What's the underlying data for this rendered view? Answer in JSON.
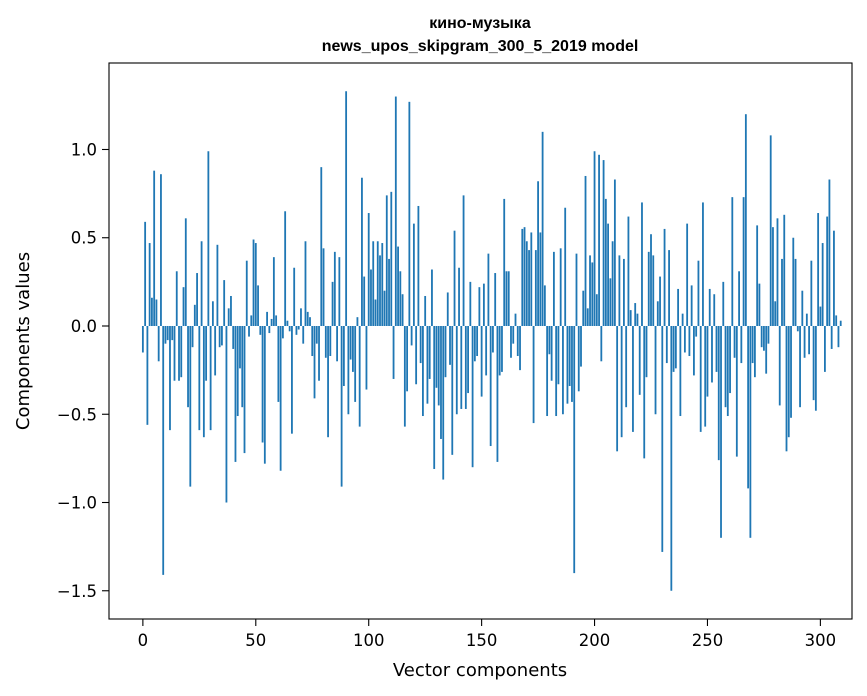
{
  "chart_data": {
    "type": "bar",
    "title": "кино-музыка",
    "subtitle": "news_upos_skipgram_300_5_2019 model",
    "xlabel": "Vector components",
    "ylabel": "Components values",
    "xlim": [
      -15,
      314
    ],
    "ylim": [
      -1.66,
      1.49
    ],
    "xticks": [
      0,
      50,
      100,
      150,
      200,
      250,
      300
    ],
    "yticks": [
      -1.5,
      -1.0,
      -0.5,
      0.0,
      0.5,
      1.0
    ],
    "ytick_labels": [
      "−1.5",
      "−1.0",
      "−0.5",
      "0.0",
      "0.5",
      "1.0"
    ],
    "xtick_labels": [
      "0",
      "50",
      "100",
      "150",
      "200",
      "250",
      "300"
    ],
    "bar_color": "#1f77b4",
    "values": [
      -0.15,
      0.59,
      -0.56,
      0.47,
      0.16,
      0.88,
      0.15,
      -0.2,
      0.86,
      -1.41,
      -0.1,
      -0.08,
      -0.59,
      -0.08,
      -0.31,
      0.31,
      -0.31,
      -0.29,
      0.22,
      0.61,
      -0.46,
      -0.91,
      -0.12,
      0.12,
      0.3,
      -0.59,
      0.48,
      -0.63,
      -0.31,
      0.99,
      -0.59,
      0.14,
      -0.28,
      0.46,
      -0.12,
      -0.11,
      0.26,
      -1.0,
      0.1,
      0.17,
      -0.13,
      -0.77,
      -0.51,
      -0.24,
      -0.46,
      -0.72,
      0.37,
      -0.06,
      0.06,
      0.49,
      0.47,
      0.23,
      -0.05,
      -0.66,
      -0.78,
      0.08,
      -0.04,
      0.04,
      0.39,
      0.06,
      -0.43,
      -0.82,
      -0.07,
      0.65,
      0.03,
      -0.03,
      -0.61,
      0.33,
      -0.05,
      -0.02,
      0.1,
      -0.1,
      0.48,
      0.08,
      0.05,
      -0.17,
      -0.41,
      -0.1,
      -0.31,
      0.9,
      0.44,
      -0.18,
      -0.63,
      -0.17,
      0.25,
      0.42,
      -0.2,
      0.39,
      -0.91,
      -0.34,
      1.33,
      -0.5,
      -0.19,
      -0.26,
      -0.43,
      0.05,
      -0.57,
      0.84,
      0.28,
      -0.36,
      0.64,
      0.32,
      0.48,
      0.15,
      0.48,
      0.4,
      0.47,
      0.2,
      0.74,
      0.38,
      0.76,
      -0.3,
      1.3,
      0.45,
      0.31,
      0.18,
      -0.57,
      -0.37,
      1.27,
      -0.11,
      0.58,
      -0.33,
      0.68,
      -0.21,
      -0.51,
      0.17,
      -0.44,
      -0.3,
      0.32,
      -0.81,
      -0.35,
      -0.45,
      -0.64,
      -0.87,
      -0.29,
      0.19,
      -0.22,
      -0.73,
      0.54,
      -0.5,
      0.33,
      -0.47,
      0.74,
      -0.47,
      -0.38,
      0.25,
      -0.8,
      -0.2,
      -0.17,
      0.22,
      -0.4,
      0.24,
      -0.28,
      0.41,
      -0.68,
      -0.15,
      0.3,
      -0.77,
      -0.28,
      -0.26,
      0.72,
      0.31,
      0.31,
      -0.18,
      -0.1,
      0.07,
      -0.17,
      -0.25,
      0.55,
      0.56,
      0.48,
      0.43,
      0.53,
      -0.55,
      0.43,
      0.82,
      0.53,
      1.1,
      0.23,
      -0.51,
      -0.16,
      -0.31,
      0.42,
      -0.51,
      -0.33,
      0.44,
      -0.5,
      0.67,
      -0.44,
      -0.34,
      -0.43,
      -1.4,
      0.41,
      -0.37,
      -0.23,
      0.2,
      0.85,
      0.1,
      0.4,
      0.36,
      0.99,
      0.18,
      0.97,
      -0.2,
      0.94,
      0.72,
      0.58,
      0.27,
      0.48,
      0.83,
      -0.71,
      0.4,
      -0.63,
      0.38,
      -0.46,
      0.62,
      0.09,
      -0.6,
      0.13,
      0.07,
      -0.39,
      0.7,
      -0.75,
      -0.29,
      0.42,
      0.52,
      0.4,
      -0.5,
      0.14,
      0.28,
      -1.28,
      0.55,
      -0.21,
      0.43,
      -1.5,
      -0.26,
      -0.24,
      0.21,
      -0.51,
      0.07,
      -0.15,
      0.58,
      -0.17,
      0.23,
      -0.28,
      -0.06,
      0.37,
      -0.6,
      0.7,
      -0.57,
      -0.4,
      0.21,
      -0.32,
      0.18,
      -0.26,
      -0.76,
      -1.2,
      0.25,
      -0.46,
      -0.51,
      -0.38,
      0.73,
      -0.18,
      -0.74,
      0.31,
      -0.21,
      0.73,
      1.2,
      -0.92,
      -1.2,
      -0.21,
      -0.29,
      0.57,
      0.24,
      -0.12,
      -0.14,
      -0.27,
      -0.1,
      1.08,
      0.56,
      0.14,
      0.61,
      -0.45,
      0.38,
      0.63,
      -0.71,
      -0.63,
      -0.52,
      0.5,
      0.38,
      -0.03,
      -0.46,
      0.2,
      -0.18,
      0.07,
      -0.16,
      0.37,
      -0.42,
      -0.48,
      0.64,
      0.11,
      0.47,
      -0.26,
      0.62,
      0.83,
      -0.13,
      0.54,
      0.06,
      -0.12,
      0.03
    ]
  }
}
